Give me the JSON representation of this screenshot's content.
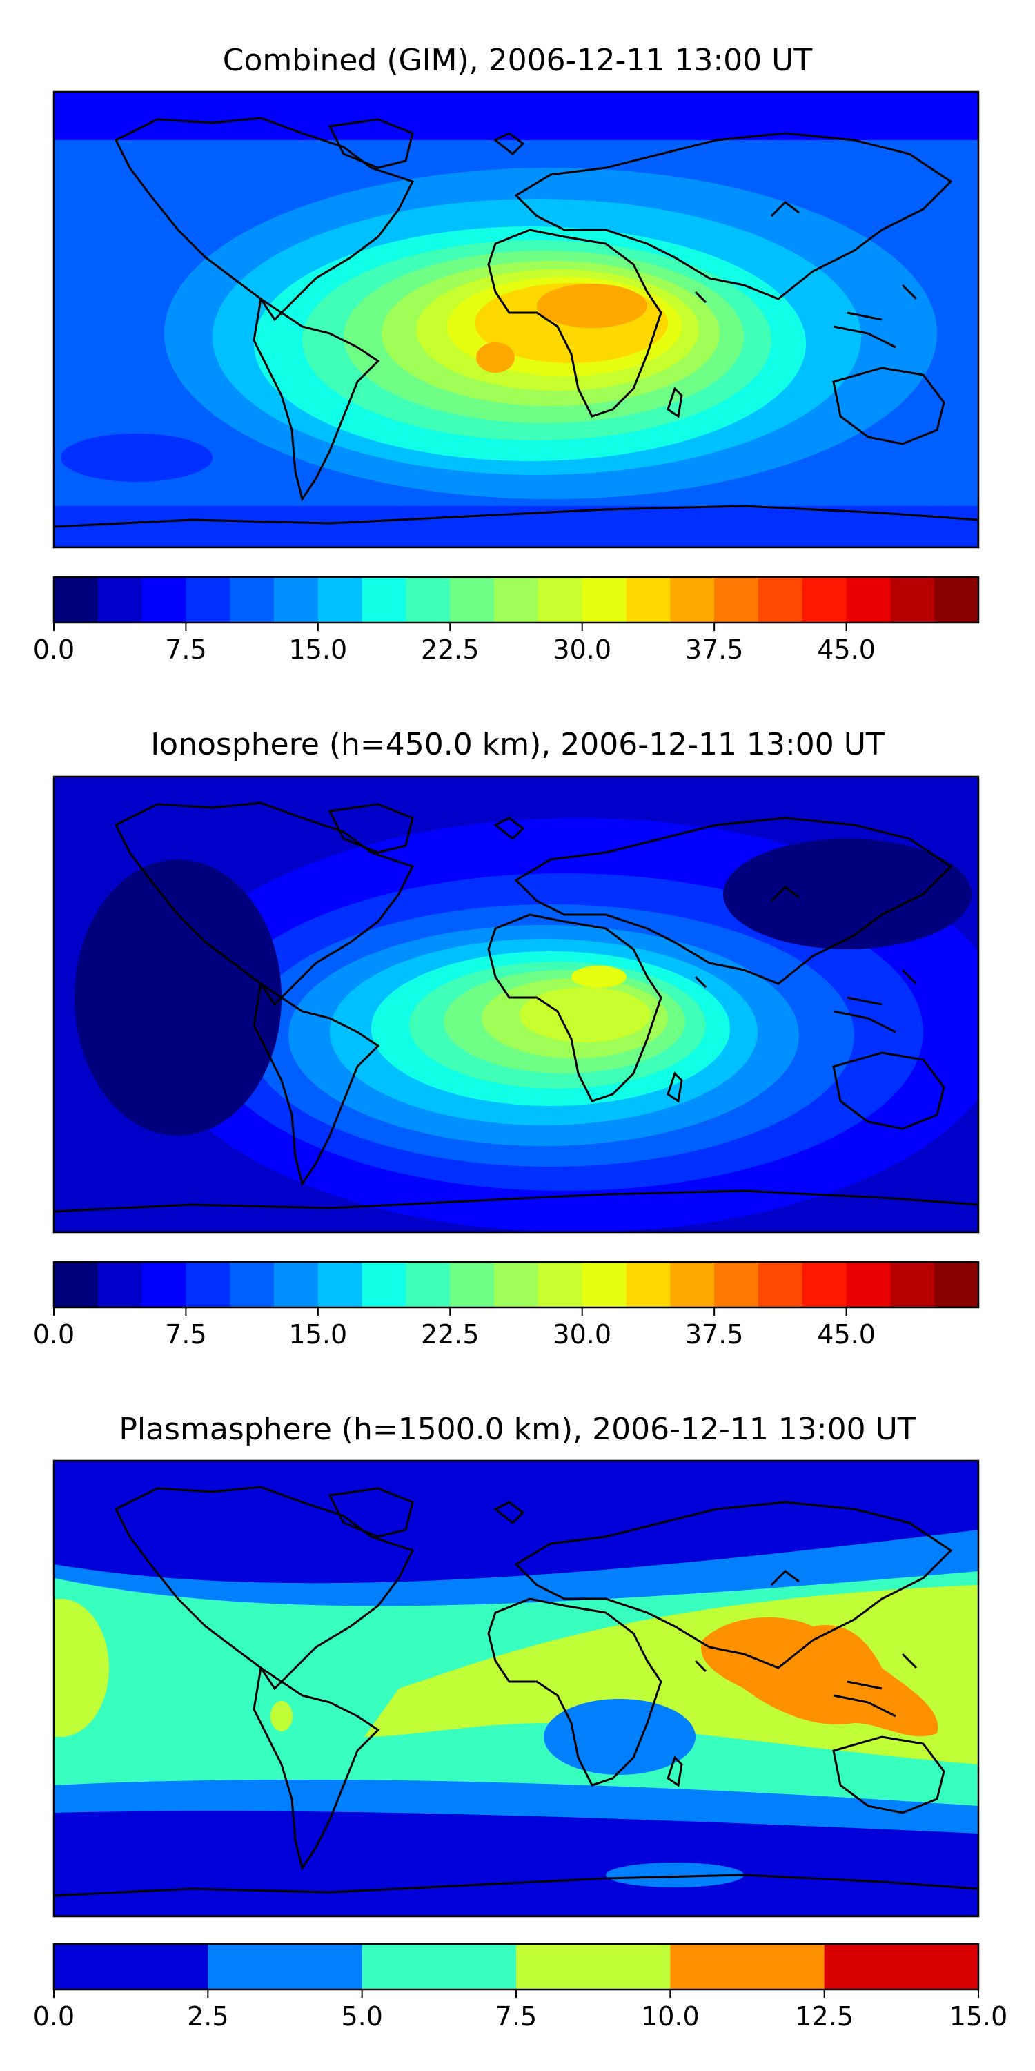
{
  "chart_data": [
    {
      "type": "heatmap",
      "title": "Combined (GIM), 2006-12-11 13:00 UT",
      "colorbar": {
        "range": [
          0,
          52.5
        ],
        "levels": 21,
        "tick_values": [
          0,
          7.5,
          15,
          22.5,
          30,
          37.5,
          45
        ],
        "tick_labels": [
          "0.0",
          "7.5",
          "15.0",
          "22.5",
          "30.0",
          "37.5",
          "45.0"
        ]
      },
      "peak_region": "over Africa",
      "peak_value_approx": 40
    },
    {
      "type": "heatmap",
      "title": "Ionosphere  (h=450.0 km), 2006-12-11 13:00 UT",
      "colorbar": {
        "range": [
          0,
          52.5
        ],
        "levels": 21,
        "tick_values": [
          0,
          7.5,
          15,
          22.5,
          30,
          37.5,
          45
        ],
        "tick_labels": [
          "0.0",
          "7.5",
          "15.0",
          "22.5",
          "30.0",
          "37.5",
          "45.0"
        ]
      },
      "peak_region": "over Africa",
      "peak_value_approx": 32
    },
    {
      "type": "heatmap",
      "title": "Plasmasphere (h=1500.0 km), 2006-12-11 13:00 UT",
      "colorbar": {
        "range": [
          0,
          15
        ],
        "levels": 6,
        "tick_values": [
          0,
          2.5,
          5,
          7.5,
          10,
          12.5,
          15
        ],
        "tick_labels": [
          "0.0",
          "2.5",
          "5.0",
          "7.5",
          "10.0",
          "12.5",
          "15.0"
        ]
      },
      "peak_region": "over Southeast Asia / Indonesia",
      "peak_value_approx": 11
    }
  ],
  "colors": {
    "jet21": [
      "#00007f",
      "#0000c8",
      "#0000ff",
      "#0030ff",
      "#0060ff",
      "#0090ff",
      "#00c0ff",
      "#10ffe6",
      "#40ffb6",
      "#70ff86",
      "#a0ff56",
      "#c8ff2e",
      "#e6ff10",
      "#ffd800",
      "#ffa800",
      "#ff7800",
      "#ff4800",
      "#ff1800",
      "#e80000",
      "#b60000",
      "#8a0000"
    ],
    "jet6": [
      "#0000d8",
      "#0080ff",
      "#38ffc0",
      "#c0ff38",
      "#ff9000",
      "#d80000"
    ]
  }
}
